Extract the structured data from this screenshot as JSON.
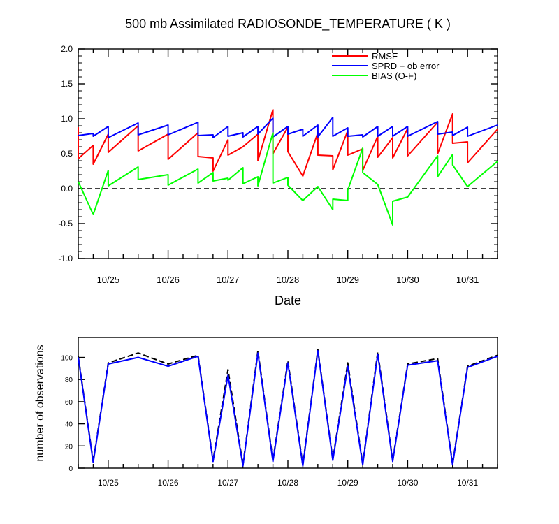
{
  "colors": {
    "rmse": "#ff0000",
    "sprd": "#0000ff",
    "bias": "#00ff00",
    "obs_used": "#0000ff",
    "obs_total": "#000000",
    "axis": "#000000"
  },
  "chart_data": [
    {
      "type": "line",
      "title": "500 mb Assimilated RADIOSONDE_TEMPERATURE ( K )",
      "xlabel": "Date",
      "ylabel": "",
      "xlim": [
        24.5,
        31.5
      ],
      "ylim": [
        -1.0,
        2.0
      ],
      "x_ticks": [
        25,
        26,
        27,
        28,
        29,
        30,
        31
      ],
      "x_tick_labels": [
        "10/25",
        "10/26",
        "10/27",
        "10/28",
        "10/29",
        "10/30",
        "10/31"
      ],
      "y_ticks": [
        -1.0,
        -0.5,
        0.0,
        0.5,
        1.0,
        1.5,
        2.0
      ],
      "y_tick_labels": [
        "-1.0",
        "-0.5",
        "0.0",
        "0.5",
        "1.0",
        "1.5",
        "2.0"
      ],
      "zero_line": "dashed",
      "legend_position": "top-right",
      "series": [
        {
          "name": "RMSE",
          "color_key": "rmse",
          "points": [
            [
              24.5,
              0.88
            ],
            [
              24.5,
              0.43
            ],
            [
              24.75,
              0.62
            ],
            [
              24.75,
              0.35
            ],
            [
              25.0,
              0.78
            ],
            [
              25.0,
              0.52
            ],
            [
              25.5,
              0.9
            ],
            [
              25.5,
              0.54
            ],
            [
              26.0,
              0.78
            ],
            [
              26.0,
              0.42
            ],
            [
              26.5,
              0.8
            ],
            [
              26.5,
              0.46
            ],
            [
              26.75,
              0.44
            ],
            [
              26.75,
              0.25
            ],
            [
              27.0,
              0.7
            ],
            [
              27.0,
              0.48
            ],
            [
              27.25,
              0.6
            ],
            [
              27.5,
              0.78
            ],
            [
              27.5,
              0.4
            ],
            [
              27.75,
              1.13
            ],
            [
              27.75,
              0.5
            ],
            [
              28.0,
              0.88
            ],
            [
              28.0,
              0.53
            ],
            [
              28.25,
              0.18
            ],
            [
              28.5,
              0.8
            ],
            [
              28.5,
              0.48
            ],
            [
              28.75,
              0.47
            ],
            [
              28.75,
              0.27
            ],
            [
              29.0,
              0.83
            ],
            [
              29.0,
              0.48
            ],
            [
              29.25,
              0.57
            ],
            [
              29.25,
              0.26
            ],
            [
              29.5,
              0.75
            ],
            [
              29.5,
              0.45
            ],
            [
              29.75,
              0.73
            ],
            [
              29.75,
              0.44
            ],
            [
              30.0,
              0.86
            ],
            [
              30.0,
              0.47
            ],
            [
              30.5,
              0.95
            ],
            [
              30.5,
              0.5
            ],
            [
              30.75,
              1.07
            ],
            [
              30.75,
              0.65
            ],
            [
              31.0,
              0.67
            ],
            [
              31.0,
              0.37
            ],
            [
              31.5,
              0.85
            ]
          ]
        },
        {
          "name": "SPRD + ob error",
          "color_key": "sprd",
          "points": [
            [
              24.5,
              0.76
            ],
            [
              24.75,
              0.79
            ],
            [
              24.75,
              0.75
            ],
            [
              25.0,
              0.89
            ],
            [
              25.0,
              0.73
            ],
            [
              25.5,
              0.94
            ],
            [
              25.5,
              0.77
            ],
            [
              26.0,
              0.91
            ],
            [
              26.0,
              0.77
            ],
            [
              26.5,
              0.95
            ],
            [
              26.5,
              0.76
            ],
            [
              26.75,
              0.77
            ],
            [
              26.75,
              0.73
            ],
            [
              27.0,
              0.89
            ],
            [
              27.0,
              0.75
            ],
            [
              27.25,
              0.8
            ],
            [
              27.25,
              0.74
            ],
            [
              27.5,
              0.89
            ],
            [
              27.5,
              0.78
            ],
            [
              27.75,
              1.01
            ],
            [
              27.75,
              0.74
            ],
            [
              28.0,
              0.89
            ],
            [
              28.0,
              0.78
            ],
            [
              28.25,
              0.85
            ],
            [
              28.25,
              0.75
            ],
            [
              28.5,
              0.91
            ],
            [
              28.5,
              0.74
            ],
            [
              28.75,
              1.02
            ],
            [
              28.75,
              0.75
            ],
            [
              29.0,
              0.87
            ],
            [
              29.0,
              0.75
            ],
            [
              29.25,
              0.77
            ],
            [
              29.25,
              0.74
            ],
            [
              29.5,
              0.89
            ],
            [
              29.5,
              0.75
            ],
            [
              29.75,
              0.89
            ],
            [
              29.75,
              0.75
            ],
            [
              30.0,
              0.89
            ],
            [
              30.0,
              0.75
            ],
            [
              30.5,
              0.96
            ],
            [
              30.5,
              0.78
            ],
            [
              30.75,
              0.81
            ],
            [
              30.75,
              0.76
            ],
            [
              31.0,
              0.88
            ],
            [
              31.0,
              0.75
            ],
            [
              31.5,
              0.91
            ]
          ]
        },
        {
          "name": "BIAS (O-F)",
          "color_key": "bias",
          "points": [
            [
              24.5,
              0.1
            ],
            [
              24.75,
              -0.37
            ],
            [
              25.0,
              0.26
            ],
            [
              25.0,
              0.04
            ],
            [
              25.5,
              0.31
            ],
            [
              25.5,
              0.13
            ],
            [
              26.0,
              0.2
            ],
            [
              26.0,
              0.05
            ],
            [
              26.5,
              0.28
            ],
            [
              26.5,
              0.08
            ],
            [
              26.75,
              0.23
            ],
            [
              26.75,
              0.11
            ],
            [
              27.0,
              0.15
            ],
            [
              27.0,
              0.12
            ],
            [
              27.25,
              0.3
            ],
            [
              27.25,
              0.07
            ],
            [
              27.5,
              0.17
            ],
            [
              27.5,
              0.04
            ],
            [
              27.75,
              0.8
            ],
            [
              27.75,
              0.08
            ],
            [
              28.0,
              0.16
            ],
            [
              28.0,
              0.05
            ],
            [
              28.25,
              -0.17
            ],
            [
              28.5,
              0.03
            ],
            [
              28.75,
              -0.3
            ],
            [
              28.75,
              -0.15
            ],
            [
              29.0,
              -0.17
            ],
            [
              29.0,
              -0.02
            ],
            [
              29.25,
              0.58
            ],
            [
              29.25,
              0.23
            ],
            [
              29.5,
              0.06
            ],
            [
              29.75,
              -0.52
            ],
            [
              29.75,
              -0.18
            ],
            [
              30.0,
              -0.12
            ],
            [
              30.5,
              0.47
            ],
            [
              30.5,
              0.17
            ],
            [
              30.75,
              0.49
            ],
            [
              30.75,
              0.34
            ],
            [
              31.0,
              0.03
            ],
            [
              31.5,
              0.39
            ]
          ]
        }
      ]
    },
    {
      "type": "line",
      "title": "",
      "xlabel": "",
      "ylabel": "number of observations",
      "xlim": [
        24.5,
        31.5
      ],
      "ylim": [
        0,
        118
      ],
      "x_ticks": [
        25,
        26,
        27,
        28,
        29,
        30,
        31
      ],
      "x_tick_labels": [
        "10/25",
        "10/26",
        "10/27",
        "10/28",
        "10/29",
        "10/30",
        "10/31"
      ],
      "y_ticks": [
        0,
        20,
        40,
        60,
        80,
        100
      ],
      "y_tick_labels": [
        "0",
        "20",
        "40",
        "60",
        "80",
        "100"
      ],
      "series": [
        {
          "color_key": "obs_total",
          "dash": "dashed",
          "points": [
            [
              24.5,
              101
            ],
            [
              24.75,
              6
            ],
            [
              25.0,
              95
            ],
            [
              25.5,
              104
            ],
            [
              26.0,
              94
            ],
            [
              26.5,
              102
            ],
            [
              26.75,
              7
            ],
            [
              27.0,
              89
            ],
            [
              27.25,
              3
            ],
            [
              27.5,
              106
            ],
            [
              27.75,
              7
            ],
            [
              28.0,
              97
            ],
            [
              28.25,
              3
            ],
            [
              28.5,
              107
            ],
            [
              28.75,
              8
            ],
            [
              29.0,
              95
            ],
            [
              29.25,
              4
            ],
            [
              29.5,
              105
            ],
            [
              29.75,
              7
            ],
            [
              30.0,
              94
            ],
            [
              30.5,
              99
            ],
            [
              30.75,
              4
            ],
            [
              31.0,
              92
            ],
            [
              31.5,
              102
            ]
          ]
        },
        {
          "color_key": "obs_used",
          "points": [
            [
              24.5,
              100
            ],
            [
              24.75,
              5
            ],
            [
              25.0,
              94
            ],
            [
              25.5,
              100
            ],
            [
              26.0,
              92
            ],
            [
              26.5,
              101
            ],
            [
              26.75,
              6
            ],
            [
              27.0,
              84
            ],
            [
              27.25,
              2
            ],
            [
              27.5,
              104
            ],
            [
              27.75,
              6
            ],
            [
              28.0,
              95
            ],
            [
              28.25,
              2
            ],
            [
              28.5,
              106
            ],
            [
              28.75,
              7
            ],
            [
              29.0,
              92
            ],
            [
              29.25,
              3
            ],
            [
              29.5,
              103
            ],
            [
              29.75,
              6
            ],
            [
              30.0,
              93
            ],
            [
              30.5,
              97
            ],
            [
              30.75,
              3
            ],
            [
              31.0,
              91
            ],
            [
              31.5,
              101
            ]
          ]
        }
      ]
    }
  ]
}
